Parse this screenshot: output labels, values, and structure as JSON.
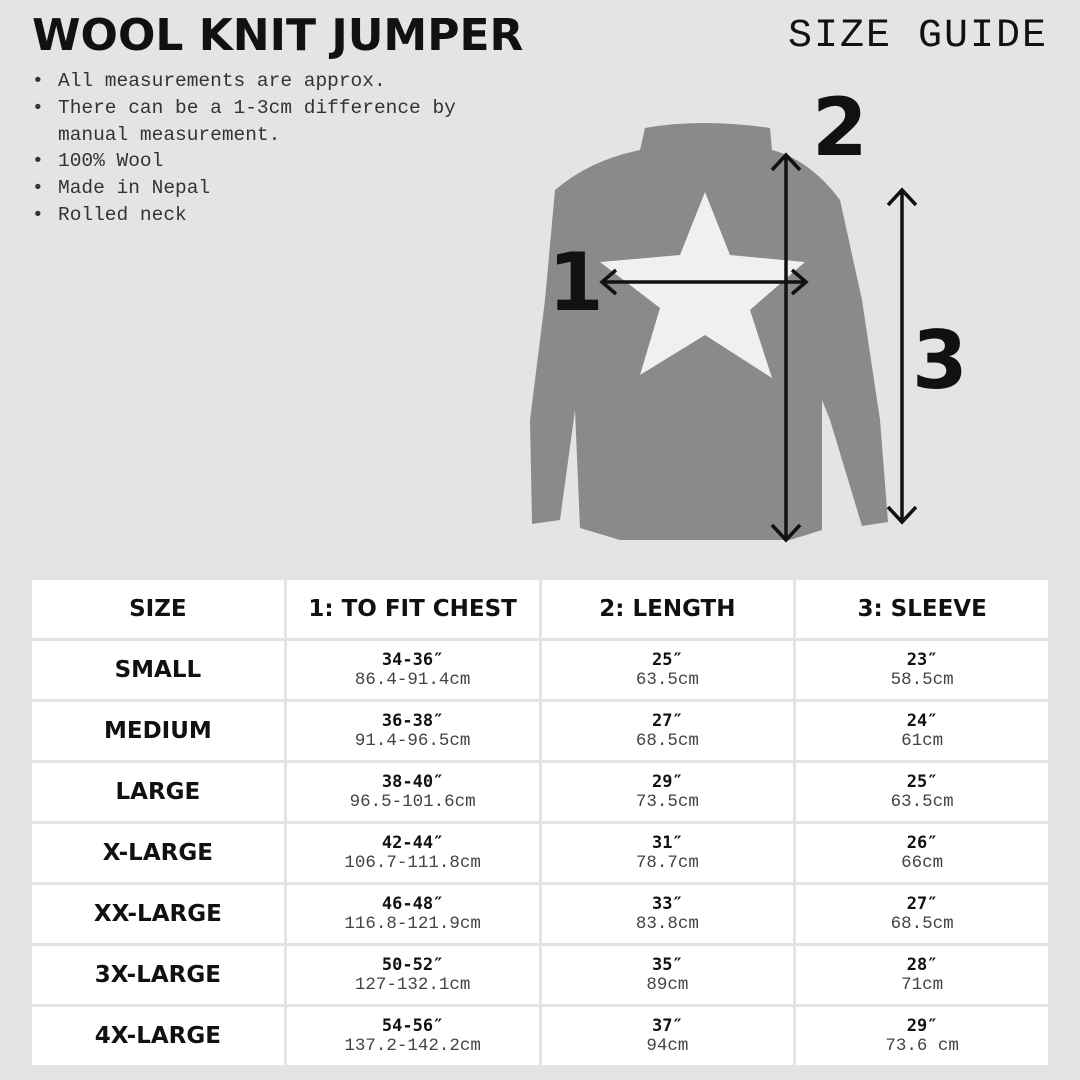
{
  "title": "WOOL KNIT JUMPER",
  "subtitle": "SIZE GUIDE",
  "notes": [
    "All measurements are approx.",
    "There can be a 1-3cm difference by manual measurement.",
    "100% Wool",
    "Made in Nepal",
    "Rolled neck"
  ],
  "diagram": {
    "labels": [
      "1",
      "2",
      "3"
    ],
    "colors": {
      "sweater": "#8a8a8a",
      "star": "#f2f2f2",
      "arrow": "#111111"
    }
  },
  "table": {
    "headers": [
      "SIZE",
      "1: TO FIT CHEST",
      "2: LENGTH",
      "3: SLEEVE"
    ],
    "rows": [
      {
        "size": "SMALL",
        "chest_in": "34-36″",
        "chest_cm": "86.4-91.4cm",
        "length_in": "25″",
        "length_cm": "63.5cm",
        "sleeve_in": "23″",
        "sleeve_cm": "58.5cm"
      },
      {
        "size": "MEDIUM",
        "chest_in": "36-38″",
        "chest_cm": "91.4-96.5cm",
        "length_in": "27″",
        "length_cm": "68.5cm",
        "sleeve_in": "24″",
        "sleeve_cm": "61cm"
      },
      {
        "size": "LARGE",
        "chest_in": "38-40″",
        "chest_cm": "96.5-101.6cm",
        "length_in": "29″",
        "length_cm": "73.5cm",
        "sleeve_in": "25″",
        "sleeve_cm": "63.5cm"
      },
      {
        "size": "X-LARGE",
        "chest_in": "42-44″",
        "chest_cm": "106.7-111.8cm",
        "length_in": "31″",
        "length_cm": "78.7cm",
        "sleeve_in": "26″",
        "sleeve_cm": "66cm"
      },
      {
        "size": "XX-LARGE",
        "chest_in": "46-48″",
        "chest_cm": "116.8-121.9cm",
        "length_in": "33″",
        "length_cm": "83.8cm",
        "sleeve_in": "27″",
        "sleeve_cm": "68.5cm"
      },
      {
        "size": "3X-LARGE",
        "chest_in": "50-52″",
        "chest_cm": "127-132.1cm",
        "length_in": "35″",
        "length_cm": "89cm",
        "sleeve_in": "28″",
        "sleeve_cm": "71cm"
      },
      {
        "size": "4X-LARGE",
        "chest_in": "54-56″",
        "chest_cm": "137.2-142.2cm",
        "length_in": "37″",
        "length_cm": "94cm",
        "sleeve_in": "29″",
        "sleeve_cm": "73.6 cm"
      }
    ]
  }
}
